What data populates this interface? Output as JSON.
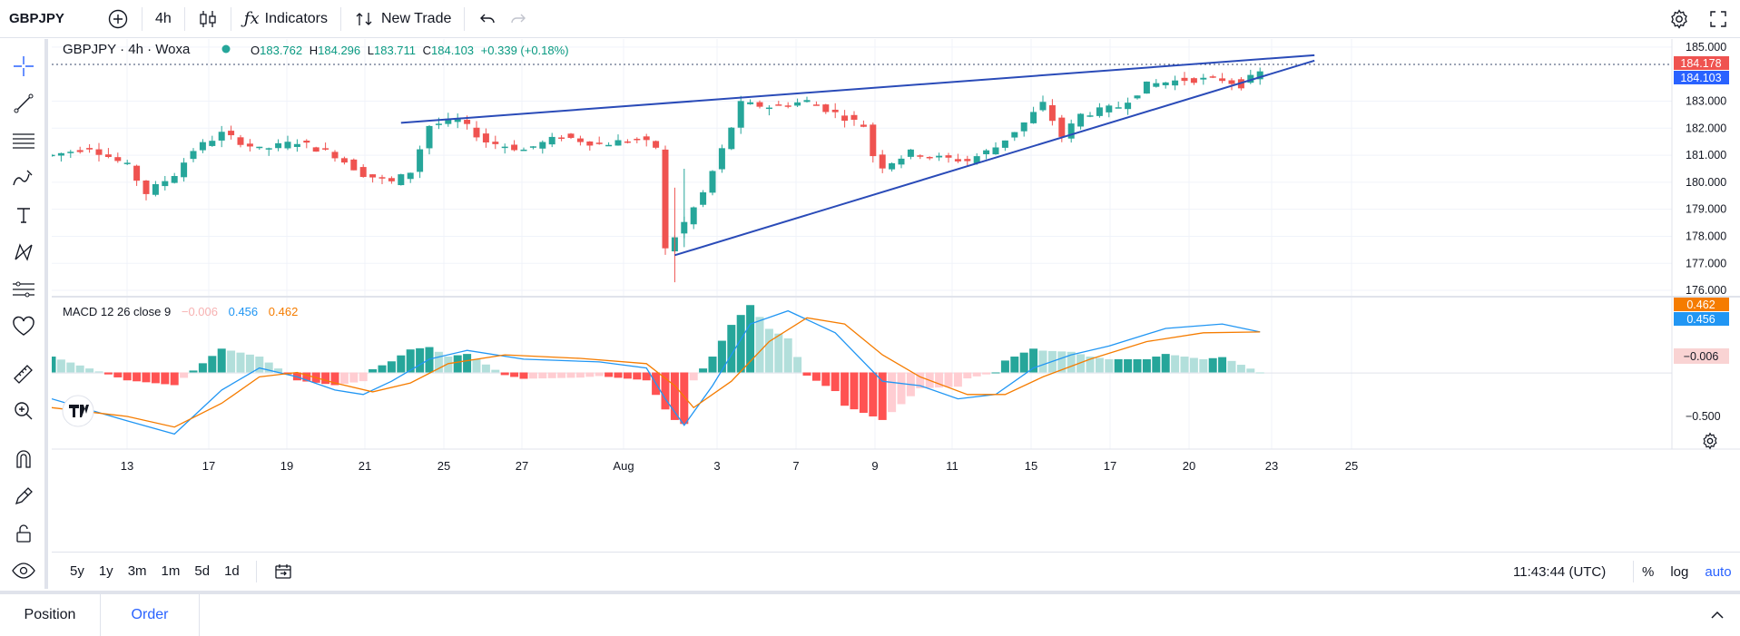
{
  "topbar": {
    "symbol": "GBPJPY",
    "interval": "4h",
    "indicators_label": "Indicators",
    "new_trade_label": "New Trade"
  },
  "legend": {
    "title": "GBPJPY · 4h · Woxa",
    "o_label": "O",
    "o_value": "183.762",
    "h_label": "H",
    "h_value": "184.296",
    "l_label": "L",
    "l_value": "183.711",
    "c_label": "C",
    "c_value": "184.103",
    "change": "+0.339 (+0.18%)"
  },
  "macd_legend": {
    "name": "MACD 12 26 close 9",
    "hist": "−0.006",
    "macd": "0.456",
    "signal": "0.462"
  },
  "price_labels": {
    "high_line": "184.178",
    "last": "184.103"
  },
  "macd_labels": {
    "signal": "0.462",
    "macd": "0.456",
    "hist": "−0.006"
  },
  "bottombar": {
    "ranges": [
      "5y",
      "1y",
      "3m",
      "1m",
      "5d",
      "1d"
    ],
    "time": "11:43:44 (UTC)",
    "percent": "%",
    "log": "log",
    "auto": "auto"
  },
  "footer": {
    "tabs": [
      "Position",
      "Order"
    ]
  },
  "colors": {
    "up": "#26a69a",
    "down": "#ef5350",
    "macd": "#2196f3",
    "signal": "#f57c00",
    "trend": "#2a4bb8",
    "accent": "#2962ff"
  },
  "chart_data": {
    "type": "candlestick",
    "symbol": "GBPJPY",
    "interval": "4h",
    "price_axis": {
      "ticks": [
        185.0,
        184.0,
        183.0,
        182.0,
        181.0,
        180.0,
        179.0,
        178.0,
        177.0,
        176.0
      ],
      "tick_labels": [
        "185.000",
        "183.000",
        "182.000",
        "181.000",
        "180.000",
        "179.000",
        "178.000",
        "177.000",
        "176.000"
      ],
      "range": [
        175.8,
        185.3
      ]
    },
    "macd_axis": {
      "tick_labels": [
        "-0.006",
        "−0.500"
      ],
      "range": [
        -0.85,
        0.85
      ]
    },
    "time_axis": {
      "labels": [
        "13",
        "17",
        "19",
        "21",
        "25",
        "27",
        "Aug",
        "3",
        "7",
        "9",
        "11",
        "15",
        "17",
        "20",
        "23",
        "25"
      ]
    },
    "approx_close_path": [
      [
        0,
        181.0
      ],
      [
        4,
        181.3
      ],
      [
        8,
        180.6
      ],
      [
        10,
        179.6
      ],
      [
        13,
        180.3
      ],
      [
        15,
        181.2
      ],
      [
        18,
        181.8
      ],
      [
        22,
        181.2
      ],
      [
        26,
        181.5
      ],
      [
        30,
        181.0
      ],
      [
        33,
        180.3
      ],
      [
        36,
        180.0
      ],
      [
        38,
        180.4
      ],
      [
        40,
        182.1
      ],
      [
        43,
        182.3
      ],
      [
        46,
        181.5
      ],
      [
        50,
        181.2
      ],
      [
        54,
        181.7
      ],
      [
        58,
        181.4
      ],
      [
        62,
        181.6
      ],
      [
        64,
        181.3
      ],
      [
        65,
        177.5
      ],
      [
        67,
        178.5
      ],
      [
        69,
        179.6
      ],
      [
        71,
        181.2
      ],
      [
        73,
        182.9
      ],
      [
        76,
        182.8
      ],
      [
        80,
        183.0
      ],
      [
        84,
        182.4
      ],
      [
        86,
        182.1
      ],
      [
        87,
        181.0
      ],
      [
        88,
        180.6
      ],
      [
        91,
        181.1
      ],
      [
        94,
        180.9
      ],
      [
        97,
        180.8
      ],
      [
        100,
        181.3
      ],
      [
        103,
        182.2
      ],
      [
        105,
        182.9
      ],
      [
        107,
        181.7
      ],
      [
        109,
        182.5
      ],
      [
        113,
        182.8
      ],
      [
        116,
        183.6
      ],
      [
        120,
        183.8
      ],
      [
        124,
        183.8
      ],
      [
        126,
        183.6
      ],
      [
        128,
        184.1
      ]
    ],
    "trendlines": [
      {
        "from": [
          37,
          182.2
        ],
        "to": [
          128,
          184.5
        ]
      },
      {
        "from": [
          66,
          177.3
        ],
        "to": [
          128,
          184.3
        ]
      }
    ],
    "macd_series": {
      "macd": [
        [
          0,
          -0.3
        ],
        [
          8,
          -0.55
        ],
        [
          13,
          -0.7
        ],
        [
          18,
          -0.2
        ],
        [
          22,
          0.05
        ],
        [
          26,
          -0.05
        ],
        [
          30,
          -0.2
        ],
        [
          33,
          -0.25
        ],
        [
          36,
          -0.1
        ],
        [
          40,
          0.15
        ],
        [
          44,
          0.25
        ],
        [
          50,
          0.15
        ],
        [
          58,
          0.12
        ],
        [
          63,
          0.05
        ],
        [
          65,
          -0.3
        ],
        [
          67,
          -0.6
        ],
        [
          70,
          -0.15
        ],
        [
          74,
          0.55
        ],
        [
          78,
          0.7
        ],
        [
          83,
          0.45
        ],
        [
          88,
          -0.1
        ],
        [
          92,
          -0.15
        ],
        [
          96,
          -0.3
        ],
        [
          100,
          -0.25
        ],
        [
          104,
          0.05
        ],
        [
          108,
          0.2
        ],
        [
          112,
          0.3
        ],
        [
          118,
          0.5
        ],
        [
          124,
          0.55
        ],
        [
          128,
          0.46
        ]
      ],
      "signal": [
        [
          0,
          -0.4
        ],
        [
          8,
          -0.5
        ],
        [
          13,
          -0.62
        ],
        [
          18,
          -0.35
        ],
        [
          22,
          -0.05
        ],
        [
          26,
          0.0
        ],
        [
          30,
          -0.12
        ],
        [
          34,
          -0.22
        ],
        [
          38,
          -0.12
        ],
        [
          42,
          0.1
        ],
        [
          48,
          0.2
        ],
        [
          56,
          0.16
        ],
        [
          63,
          0.1
        ],
        [
          66,
          -0.15
        ],
        [
          68,
          -0.4
        ],
        [
          72,
          -0.1
        ],
        [
          76,
          0.35
        ],
        [
          80,
          0.62
        ],
        [
          84,
          0.55
        ],
        [
          88,
          0.2
        ],
        [
          92,
          -0.05
        ],
        [
          97,
          -0.25
        ],
        [
          101,
          -0.25
        ],
        [
          105,
          -0.05
        ],
        [
          110,
          0.15
        ],
        [
          116,
          0.35
        ],
        [
          122,
          0.45
        ],
        [
          128,
          0.46
        ]
      ]
    }
  }
}
